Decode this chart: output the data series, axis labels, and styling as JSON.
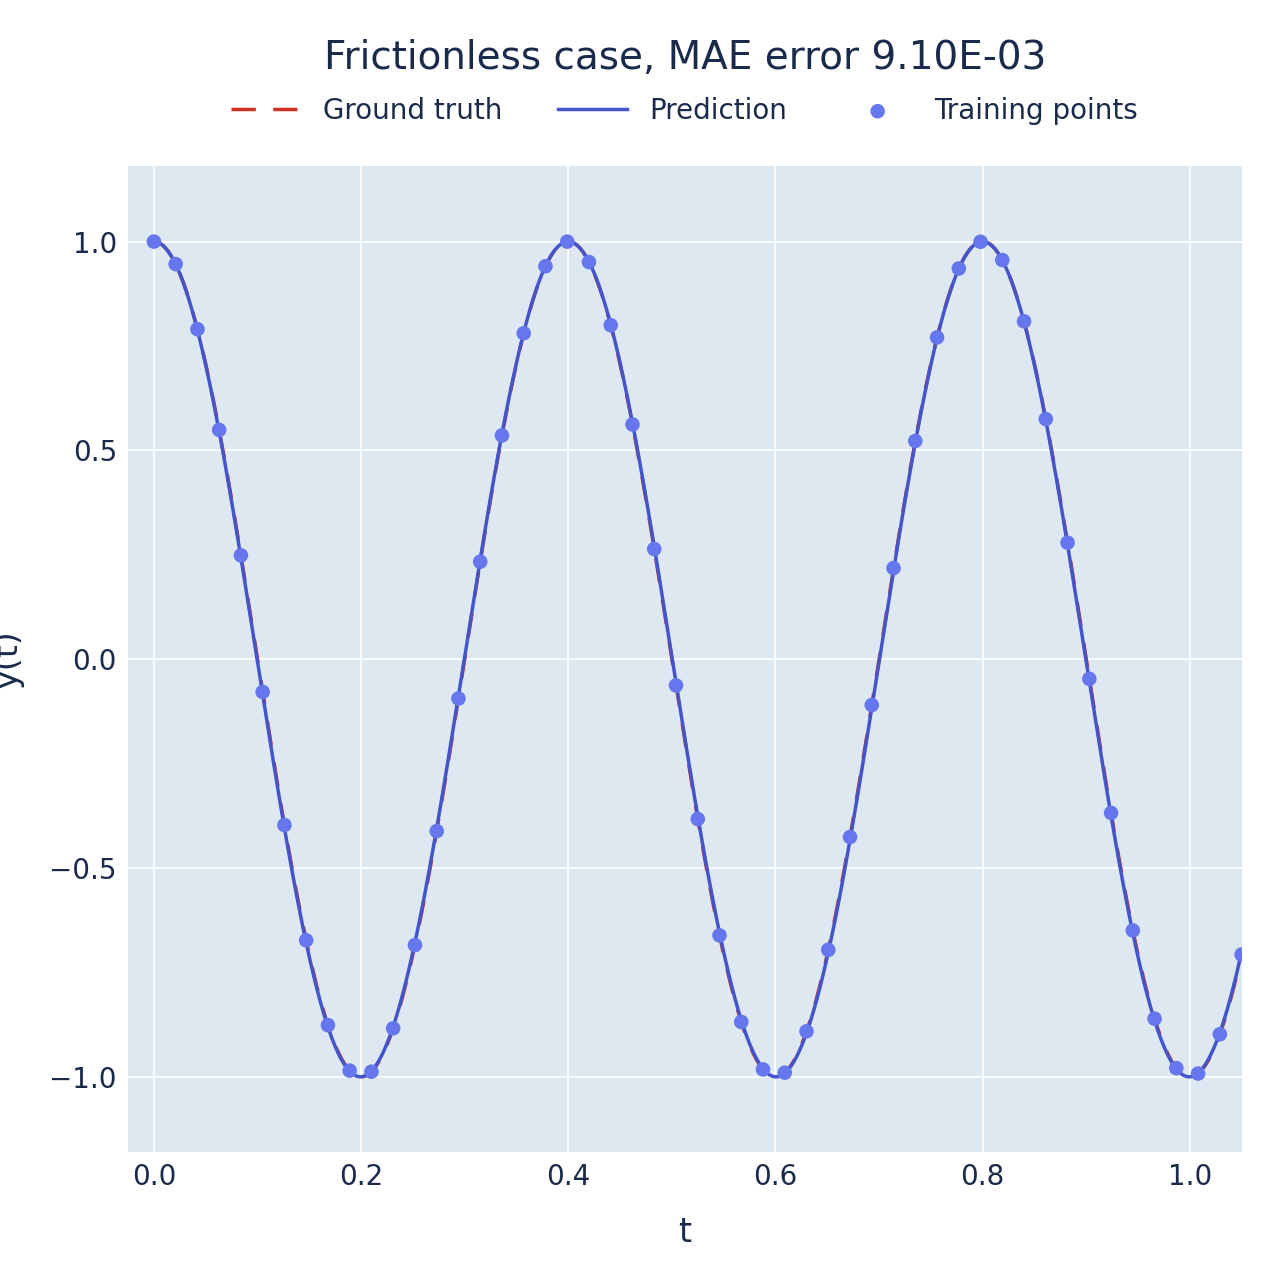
{
  "title": "Frictionless case, MAE error 9.10E-03",
  "xlabel": "t",
  "ylabel": "y(t)",
  "title_fontsize": 28,
  "label_fontsize": 24,
  "tick_fontsize": 20,
  "legend_fontsize": 20,
  "t_min": 0.0,
  "t_max": 1.05,
  "y_min": -1.18,
  "y_max": 1.18,
  "omega": 15.70796326794897,
  "n_points": 50,
  "prediction_color": "#4455cc",
  "ground_truth_color": "#cc3322",
  "training_points_color": "#6677ee",
  "axes_background_color": "#dde8f0",
  "text_color": "#1a2a4a",
  "grid_color": "#ffffff",
  "title_color": "#1a2a4a"
}
